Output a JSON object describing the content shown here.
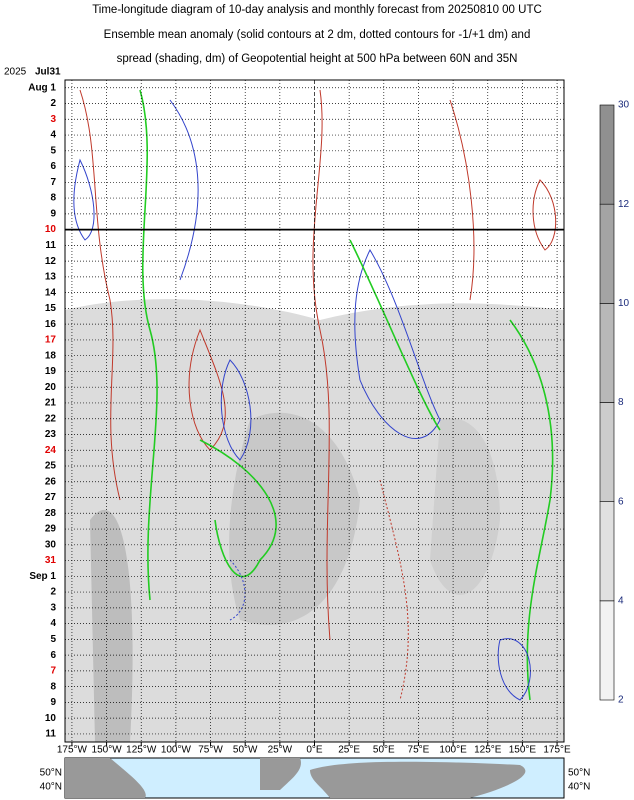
{
  "chart_data": {
    "type": "hovmoller",
    "title": [
      "Time-longitude diagram of 10-day analysis and monthly forecast from 20250810 00 UTC",
      "Ensemble mean anomaly (solid contours at 2 dm, dotted contours for -1/+1 dm) and",
      "spread (shading, dm) of Geopotential height at 500 hPa between 60N and 35N"
    ],
    "year": "2025",
    "dates": [
      {
        "label": "Jul31",
        "color": "#000"
      },
      {
        "label": "Aug 1",
        "color": "#000"
      },
      {
        "label": "2",
        "color": "#000"
      },
      {
        "label": "3",
        "color": "#e00000"
      },
      {
        "label": "4",
        "color": "#000"
      },
      {
        "label": "5",
        "color": "#000"
      },
      {
        "label": "6",
        "color": "#000"
      },
      {
        "label": "7",
        "color": "#000"
      },
      {
        "label": "8",
        "color": "#000"
      },
      {
        "label": "9",
        "color": "#000"
      },
      {
        "label": "10",
        "color": "#e00000"
      },
      {
        "label": "11",
        "color": "#000"
      },
      {
        "label": "12",
        "color": "#000"
      },
      {
        "label": "13",
        "color": "#000"
      },
      {
        "label": "14",
        "color": "#000"
      },
      {
        "label": "15",
        "color": "#000"
      },
      {
        "label": "16",
        "color": "#000"
      },
      {
        "label": "17",
        "color": "#e00000"
      },
      {
        "label": "18",
        "color": "#000"
      },
      {
        "label": "19",
        "color": "#000"
      },
      {
        "label": "20",
        "color": "#000"
      },
      {
        "label": "21",
        "color": "#000"
      },
      {
        "label": "22",
        "color": "#000"
      },
      {
        "label": "23",
        "color": "#000"
      },
      {
        "label": "24",
        "color": "#e00000"
      },
      {
        "label": "25",
        "color": "#000"
      },
      {
        "label": "26",
        "color": "#000"
      },
      {
        "label": "27",
        "color": "#000"
      },
      {
        "label": "28",
        "color": "#000"
      },
      {
        "label": "29",
        "color": "#000"
      },
      {
        "label": "30",
        "color": "#000"
      },
      {
        "label": "31",
        "color": "#e00000"
      },
      {
        "label": "Sep 1",
        "color": "#000"
      },
      {
        "label": "2",
        "color": "#000"
      },
      {
        "label": "3",
        "color": "#000"
      },
      {
        "label": "4",
        "color": "#000"
      },
      {
        "label": "5",
        "color": "#000"
      },
      {
        "label": "6",
        "color": "#000"
      },
      {
        "label": "7",
        "color": "#e00000"
      },
      {
        "label": "8",
        "color": "#000"
      },
      {
        "label": "9",
        "color": "#000"
      },
      {
        "label": "10",
        "color": "#000"
      },
      {
        "label": "11",
        "color": "#000"
      }
    ],
    "analysis_end": "10",
    "xlim": [
      -180,
      180
    ],
    "xticks": [
      {
        "value": -175,
        "label": "175°W"
      },
      {
        "value": -150,
        "label": "150°W"
      },
      {
        "value": -125,
        "label": "125°W"
      },
      {
        "value": -100,
        "label": "100°W"
      },
      {
        "value": -75,
        "label": "75°W"
      },
      {
        "value": -50,
        "label": "50°W"
      },
      {
        "value": -25,
        "label": "25°W"
      },
      {
        "value": 0,
        "label": "0°E"
      },
      {
        "value": 25,
        "label": "25°E"
      },
      {
        "value": 50,
        "label": "50°E"
      },
      {
        "value": 75,
        "label": "75°E"
      },
      {
        "value": 100,
        "label": "100°E"
      },
      {
        "value": 125,
        "label": "125°E"
      },
      {
        "value": 150,
        "label": "150°E"
      },
      {
        "value": 175,
        "label": "175°E"
      }
    ],
    "colorbar": [
      2,
      4,
      6,
      8,
      10,
      12,
      30
    ],
    "map_labels": [
      "50°N",
      "40°N"
    ]
  }
}
